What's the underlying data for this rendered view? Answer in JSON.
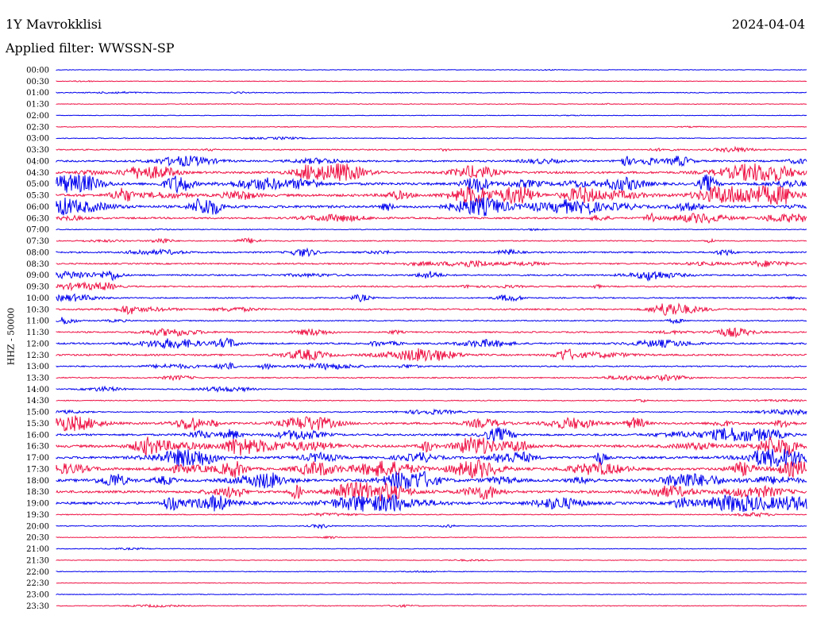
{
  "header": {
    "station": "1Y Mavrokklisi",
    "date": "2024-04-04",
    "filter": "Applied filter: WWSSN-SP"
  },
  "chart_data": {
    "type": "line",
    "title": "1Y Mavrokklisi",
    "ylabel": "HHZ - 50000",
    "colors": [
      "#0000ee",
      "#ee1144"
    ],
    "rows": [
      "00:00",
      "00:30",
      "01:00",
      "01:30",
      "02:00",
      "02:30",
      "03:00",
      "03:30",
      "04:00",
      "04:30",
      "05:00",
      "05:30",
      "06:00",
      "06:30",
      "07:00",
      "07:30",
      "08:00",
      "08:30",
      "09:00",
      "09:30",
      "10:00",
      "10:30",
      "11:00",
      "11:30",
      "12:00",
      "12:30",
      "13:00",
      "13:30",
      "14:00",
      "14:30",
      "15:00",
      "15:30",
      "16:00",
      "16:30",
      "17:00",
      "17:30",
      "18:00",
      "18:30",
      "19:00",
      "19:30",
      "20:00",
      "20:30",
      "21:00",
      "21:30",
      "22:00",
      "22:30",
      "23:00",
      "23:30"
    ],
    "activity": [
      0.05,
      0.06,
      0.15,
      0.08,
      0.05,
      0.1,
      0.15,
      0.3,
      0.6,
      0.85,
      1.0,
      1.0,
      1.0,
      0.6,
      0.15,
      0.3,
      0.5,
      0.45,
      0.5,
      0.4,
      0.35,
      0.5,
      0.3,
      0.45,
      0.55,
      0.6,
      0.4,
      0.3,
      0.25,
      0.2,
      0.25,
      0.8,
      0.7,
      1.0,
      0.9,
      0.95,
      1.0,
      0.9,
      1.0,
      0.2,
      0.2,
      0.1,
      0.1,
      0.08,
      0.1,
      0.08,
      0.1,
      0.15
    ]
  }
}
